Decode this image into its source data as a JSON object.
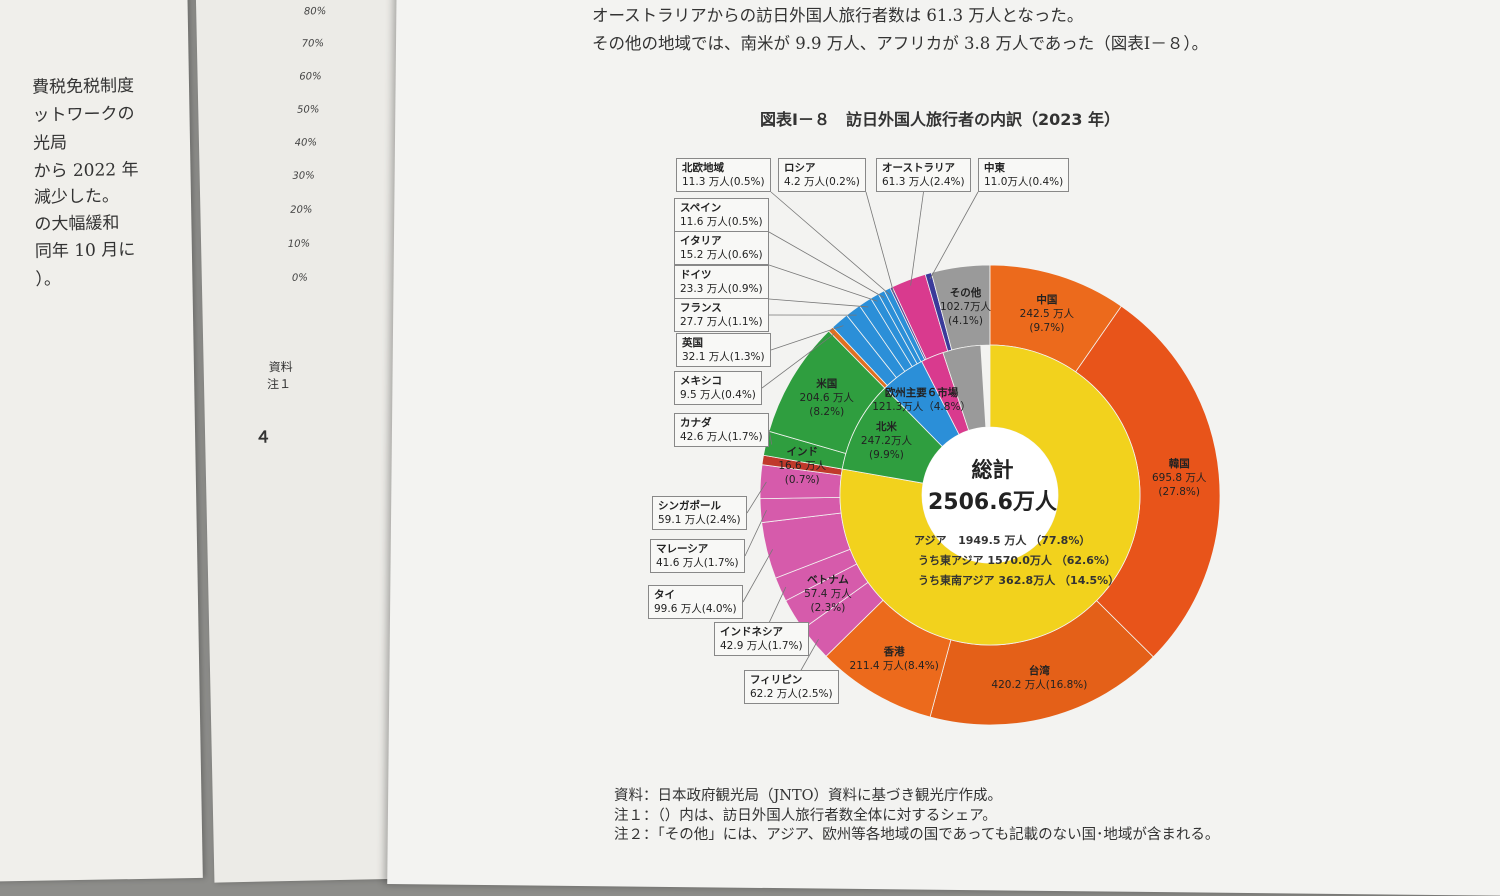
{
  "left_page_lines": [
    "費税免税制度",
    "ットワークの",
    "光局",
    "から 2022 年",
    "減少した。",
    "の大幅緩和",
    "同年 10 月に",
    "）。"
  ],
  "mid_page": {
    "percent_ticks": [
      "80%",
      "70%",
      "60%",
      "50%",
      "40%",
      "30%",
      "20%",
      "10%",
      "0%"
    ],
    "fragments": [
      "資料",
      "注１",
      "４"
    ]
  },
  "body_text": [
    "オーストラリアからの訪日外国人旅行者数は 61.3 万人となった。",
    "その他の地域では、南米が 9.9 万人、アフリカが 3.8 万人であった（図表Ⅰ－８）。"
  ],
  "figure_title": "図表Ⅰ－８　訪日外国人旅行者の内訳（2023 年）",
  "notes": [
    "資料：日本政府観光局（JNTO）資料に基づき観光庁作成。",
    "注１：（）内は、訪日外国人旅行者数全体に対するシェア。",
    "注２：「その他」には、アジア、欧州等各地域の国であっても記載のない国･地域が含まれる。"
  ],
  "chart_data": {
    "type": "pie",
    "subtype": "donut",
    "total": {
      "label": "総計",
      "value": "2506.6万人",
      "number": 2506.6
    },
    "unit": "万人",
    "inner_ring": [
      {
        "name": "アジア",
        "value": 1949.5,
        "share": "77.8%",
        "color": "#f2d21d"
      },
      {
        "name": "北米",
        "value": 247.2,
        "share": "9.9%",
        "color": "#2f9e3f"
      },
      {
        "name": "欧州主要６市場",
        "value": 121.3,
        "share": "4.8%",
        "color": "#2b8fd8"
      },
      {
        "name": "オーストラリア",
        "value": 61.3,
        "share": "2.4%",
        "color": "#d93a8e"
      },
      {
        "name": "その他",
        "value": 102.7,
        "share": "4.1%",
        "color": "#9a9a9a"
      }
    ],
    "asia_breakdown": [
      {
        "label": "アジア",
        "value": "1949.5 万人",
        "share": "（77.8%）"
      },
      {
        "label": "うち東アジア",
        "value": "1570.0万人",
        "share": "（62.6%）"
      },
      {
        "label": "うち東南アジア",
        "value": "362.8万人",
        "share": "（14.5%）"
      }
    ],
    "outer_ring": [
      {
        "name": "中国",
        "value": 242.5,
        "share": "9.7%",
        "color": "#ec6a1c"
      },
      {
        "name": "韓国",
        "value": 695.8,
        "share": "27.8%",
        "color": "#e8541a"
      },
      {
        "name": "台湾",
        "value": 420.2,
        "share": "16.8%",
        "color": "#e46018"
      },
      {
        "name": "香港",
        "value": 211.4,
        "share": "8.4%",
        "color": "#ec6a1c"
      },
      {
        "name": "フィリピン",
        "value": 62.2,
        "share": "2.5%",
        "color": "#d65bab"
      },
      {
        "name": "ベトナム",
        "value": 57.4,
        "share": "2.3%",
        "color": "#d65bab"
      },
      {
        "name": "インドネシア",
        "value": 42.9,
        "share": "1.7%",
        "color": "#d65bab"
      },
      {
        "name": "タイ",
        "value": 99.6,
        "share": "4.0%",
        "color": "#d65bab"
      },
      {
        "name": "マレーシア",
        "value": 41.6,
        "share": "1.7%",
        "color": "#d65bab"
      },
      {
        "name": "シンガポール",
        "value": 59.1,
        "share": "2.4%",
        "color": "#d65bab"
      },
      {
        "name": "インド",
        "value": 16.6,
        "share": "0.7%",
        "color": "#c0392b"
      },
      {
        "name": "カナダ",
        "value": 42.6,
        "share": "1.7%",
        "color": "#2f9e3f"
      },
      {
        "name": "米国",
        "value": 204.6,
        "share": "8.2%",
        "color": "#2f9e3f"
      },
      {
        "name": "メキシコ",
        "value": 9.5,
        "share": "0.4%",
        "color": "#e07020"
      },
      {
        "name": "英国",
        "value": 32.1,
        "share": "1.3%",
        "color": "#2b8fd8"
      },
      {
        "name": "フランス",
        "value": 27.7,
        "share": "1.1%",
        "color": "#2b8fd8"
      },
      {
        "name": "ドイツ",
        "value": 23.3,
        "share": "0.9%",
        "color": "#2b8fd8"
      },
      {
        "name": "イタリア",
        "value": 15.2,
        "share": "0.6%",
        "color": "#2b8fd8"
      },
      {
        "name": "スペイン",
        "value": 11.6,
        "share": "0.5%",
        "color": "#2b8fd8"
      },
      {
        "name": "北欧地域",
        "value": 11.3,
        "share": "0.5%",
        "color": "#2b8fd8"
      },
      {
        "name": "ロシア",
        "value": 4.2,
        "share": "0.2%",
        "color": "#5a4a9a"
      },
      {
        "name": "オーストラリア",
        "value": 61.3,
        "share": "2.4%",
        "color": "#d93a8e"
      },
      {
        "name": "中東",
        "value": 11.0,
        "share": "0.4%",
        "color": "#3a3a9a"
      },
      {
        "name": "その他",
        "value": 102.7,
        "share": "4.1%",
        "color": "#9a9a9a"
      }
    ],
    "labels": {
      "中国": [
        "中国",
        "242.5 万人",
        "(9.7%)"
      ],
      "韓国": [
        "韓国",
        "695.8 万人",
        "(27.8%)"
      ],
      "台湾": [
        "台湾",
        "420.2 万人(16.8%)"
      ],
      "香港": [
        "香港",
        "211.4 万人(8.4%)"
      ],
      "フィリピン": [
        "フィリピン",
        "62.2 万人(2.5%)"
      ],
      "ベトナム": [
        "ベトナム",
        "57.4 万人",
        "(2.3%)"
      ],
      "インドネシア": [
        "インドネシア",
        "42.9 万人(1.7%)"
      ],
      "タイ": [
        "タイ",
        "99.6 万人(4.0%)"
      ],
      "マレーシア": [
        "マレーシア",
        "41.6 万人(1.7%)"
      ],
      "シンガポール": [
        "シンガポール",
        "59.1 万人(2.4%)"
      ],
      "インド": [
        "インド",
        "16.6 万人",
        "(0.7%)"
      ],
      "カナダ": [
        "カナダ",
        "42.6 万人(1.7%)"
      ],
      "米国": [
        "米国",
        "204.6 万人",
        "(8.2%)"
      ],
      "メキシコ": [
        "メキシコ",
        "9.5 万人(0.4%)"
      ],
      "英国": [
        "英国",
        "32.1 万人(1.3%)"
      ],
      "フランス": [
        "フランス",
        "27.7 万人(1.1%)"
      ],
      "ドイツ": [
        "ドイツ",
        "23.3 万人(0.9%)"
      ],
      "イタリア": [
        "イタリア",
        "15.2 万人(0.6%)"
      ],
      "スペイン": [
        "スペイン",
        "11.6 万人(0.5%)"
      ],
      "北欧地域": [
        "北欧地域",
        "11.3 万人(0.5%)"
      ],
      "ロシア": [
        "ロシア",
        "4.2 万人(0.2%)"
      ],
      "オーストラリア": [
        "オーストラリア",
        "61.3 万人(2.4%)"
      ],
      "中東": [
        "中東",
        "11.0万人(0.4%)"
      ],
      "その他": [
        "その他",
        "102.7万人",
        "(4.1%)"
      ],
      "北米": [
        "北米",
        "247.2万人",
        "(9.9%)"
      ],
      "欧州主要６市場": [
        "欧州主要６市場",
        "121.3万人（4.8%）"
      ]
    }
  }
}
